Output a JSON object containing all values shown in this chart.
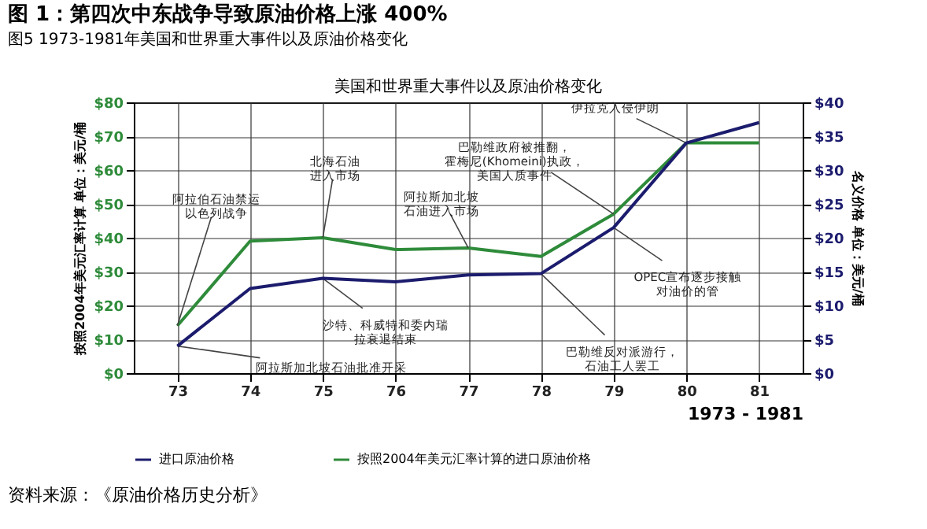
{
  "chart_data": {
    "type": "line",
    "title": "图 1：第四次中东战争导致原油价格上涨 400%",
    "subtitle": "图5    1973-1981年美国和世界重大事件以及原油价格变化",
    "xlabel": "1973 - 1981",
    "ylabel": "按照2004年美元汇率计算 单位：美元/桶",
    "y2label": "名义价格 单位：美元/桶",
    "x": [
      73,
      74,
      75,
      76,
      77,
      78,
      79,
      80,
      81
    ],
    "series": [
      {
        "name": "进口原油价格",
        "color": "#1c1c6e",
        "axis": "y2",
        "values": [
          4,
          12.5,
          14,
          13.5,
          14.5,
          14.7,
          21.5,
          34,
          37
        ]
      },
      {
        "name": "按照2004年美元汇率计算的进口原油价格",
        "color": "#2e8b3a",
        "axis": "y",
        "values": [
          14,
          39,
          40,
          36.5,
          37,
          34.5,
          47,
          68,
          68
        ]
      }
    ],
    "xlim": [
      72.4,
      81.6
    ],
    "xticks": [
      73,
      74,
      75,
      76,
      77,
      78,
      79,
      80,
      81
    ],
    "ylim": [
      0,
      80
    ],
    "yticks": [
      {
        "value": 0,
        "label": "$0"
      },
      {
        "value": 10,
        "label": "$10"
      },
      {
        "value": 20,
        "label": "$20"
      },
      {
        "value": 30,
        "label": "$30"
      },
      {
        "value": 40,
        "label": "$40"
      },
      {
        "value": 50,
        "label": "$50"
      },
      {
        "value": 60,
        "label": "$60"
      },
      {
        "value": 70,
        "label": "$70"
      },
      {
        "value": 80,
        "label": "$80"
      }
    ],
    "y2lim": [
      0,
      40
    ],
    "y2ticks": [
      {
        "value": 0,
        "label": "$0"
      },
      {
        "value": 5,
        "label": "$5"
      },
      {
        "value": 10,
        "label": "$10"
      },
      {
        "value": 15,
        "label": "$15"
      },
      {
        "value": 20,
        "label": "$20"
      },
      {
        "value": 25,
        "label": "$25"
      },
      {
        "value": 30,
        "label": "$30"
      },
      {
        "value": 35,
        "label": "$35"
      },
      {
        "value": 40,
        "label": "$40"
      }
    ],
    "grid": true,
    "legend": "bottom",
    "annotations": [
      "美国和世界重大事件以及原油价格变化",
      {
        "text": "阿拉伯石油禁运以色列战争",
        "x": 73,
        "y": 14
      },
      {
        "text": "阿拉斯加北坡石油批准开采",
        "x": 73,
        "y": 8
      },
      {
        "text": "北海石油进入市场",
        "x": 75,
        "y": 40
      },
      {
        "text": "沙特、科威特和委内瑞拉衰退结束",
        "x": 75,
        "y": 28
      },
      {
        "text": "阿拉斯加北坡石油进入市场",
        "x": 77,
        "y": 37
      },
      {
        "text": "巴勒维政府被推翻，霍梅尼(Khomeini)执政，美国人质事件",
        "x": 79,
        "y": 47
      },
      {
        "text": "伊拉克入侵伊朗",
        "x": 80,
        "y": 68
      },
      {
        "text": "OPEC宣布逐步接触对油价的管",
        "x": 79,
        "y": 43
      },
      {
        "text": "巴勒维反对派游行，石油工人罢工",
        "x": 78,
        "y": 29.4
      },
      "资料来源：《原油价格历史分析》"
    ]
  }
}
